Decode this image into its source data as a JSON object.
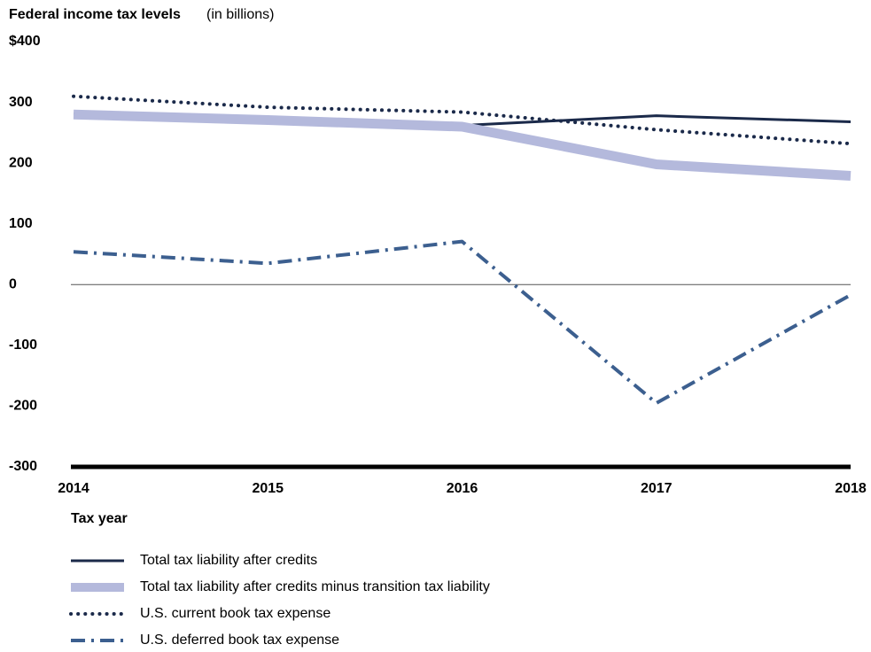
{
  "chart_data": {
    "type": "line",
    "title": "Federal income tax levels",
    "subtitle": "(in billions)",
    "x_label": "Tax year",
    "categories": [
      "2014",
      "2015",
      "2016",
      "2017",
      "2018"
    ],
    "series": [
      {
        "name": "Total tax liability after credits",
        "color": "#1b2a4a",
        "style": "solid",
        "width": 3,
        "values": [
          281,
          273,
          262,
          278,
          268
        ]
      },
      {
        "name": "Total tax liability after credits minus transition tax liability",
        "color": "#b4b9dc",
        "style": "solid",
        "width": 11,
        "values": [
          280,
          271,
          260,
          198,
          179
        ]
      },
      {
        "name": "U.S. current book tax expense",
        "color": "#1b2a4a",
        "style": "dotted",
        "width": 4,
        "values": [
          310,
          292,
          284,
          255,
          232
        ]
      },
      {
        "name": "U.S. deferred book tax expense",
        "color": "#3c5f8f",
        "style": "dashdot",
        "width": 4,
        "values": [
          54,
          35,
          71,
          -195,
          -17
        ]
      }
    ],
    "ylim": [
      -300,
      400
    ],
    "yticks": [
      {
        "value": 400,
        "label": "$400"
      },
      300,
      200,
      100,
      0,
      -100,
      -200,
      -300
    ],
    "grid": false
  }
}
